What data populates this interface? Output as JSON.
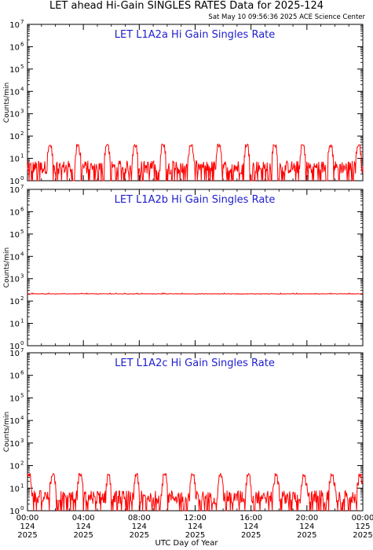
{
  "title": "LET ahead Hi-Gain SINGLES RATES Data for 2025-124",
  "timestamp": "Sat May 10 09:56:36 2025 ACE Science Center",
  "xlabel": "UTC Day of Year",
  "colors": {
    "series": "#ff0000",
    "panel_title": "#2020d0",
    "axis": "#000000"
  },
  "chart_data": [
    {
      "type": "line",
      "title": "LET L1A2a Hi Gain Singles Rate",
      "ylabel": "Counts/min",
      "yscale": "log",
      "ylim": [
        1,
        10000000
      ],
      "xlim": [
        0,
        24
      ],
      "baseline": [
        2,
        8
      ],
      "spike_hours": [
        1.6,
        3.6,
        5.7,
        7.7,
        9.7,
        11.7,
        13.7,
        15.7,
        17.7,
        19.7,
        21.7,
        23.7
      ],
      "spike_peak": 45,
      "series_name": ""
    },
    {
      "type": "line",
      "title": "LET L1A2b Hi Gain Singles Rate",
      "ylabel": "Counts/min",
      "yscale": "log",
      "ylim": [
        1,
        10000000
      ],
      "xlim": [
        0,
        24
      ],
      "baseline": [
        190,
        215
      ],
      "spike_hours": [],
      "spike_peak": 230,
      "series_name": ""
    },
    {
      "type": "line",
      "title": "LET L1A2c Hi Gain Singles Rate",
      "ylabel": "Counts/min",
      "yscale": "log",
      "ylim": [
        1,
        10000000
      ],
      "xlim": [
        0,
        24
      ],
      "baseline": [
        2,
        8
      ],
      "spike_hours": [
        0.1,
        1.8,
        3.8,
        5.8,
        7.8,
        9.8,
        11.8,
        13.8,
        15.8,
        17.8,
        19.8,
        21.8,
        23.8
      ],
      "spike_peak": 45,
      "series_name": ""
    }
  ],
  "xticks": [
    {
      "hour": 0,
      "time": "00:00",
      "doy": "124",
      "year": "2025"
    },
    {
      "hour": 4,
      "time": "04:00",
      "doy": "124",
      "year": "2025"
    },
    {
      "hour": 8,
      "time": "08:00",
      "doy": "124",
      "year": "2025"
    },
    {
      "hour": 12,
      "time": "12:00",
      "doy": "124",
      "year": "2025"
    },
    {
      "hour": 16,
      "time": "16:00",
      "doy": "124",
      "year": "2025"
    },
    {
      "hour": 20,
      "time": "20:00",
      "doy": "124",
      "year": "2025"
    },
    {
      "hour": 24,
      "time": "00:00",
      "doy": "125",
      "year": "2025"
    }
  ],
  "ytick_base": "10",
  "ytick_exponents": [
    "0",
    "1",
    "2",
    "3",
    "4",
    "5",
    "6",
    "7"
  ]
}
